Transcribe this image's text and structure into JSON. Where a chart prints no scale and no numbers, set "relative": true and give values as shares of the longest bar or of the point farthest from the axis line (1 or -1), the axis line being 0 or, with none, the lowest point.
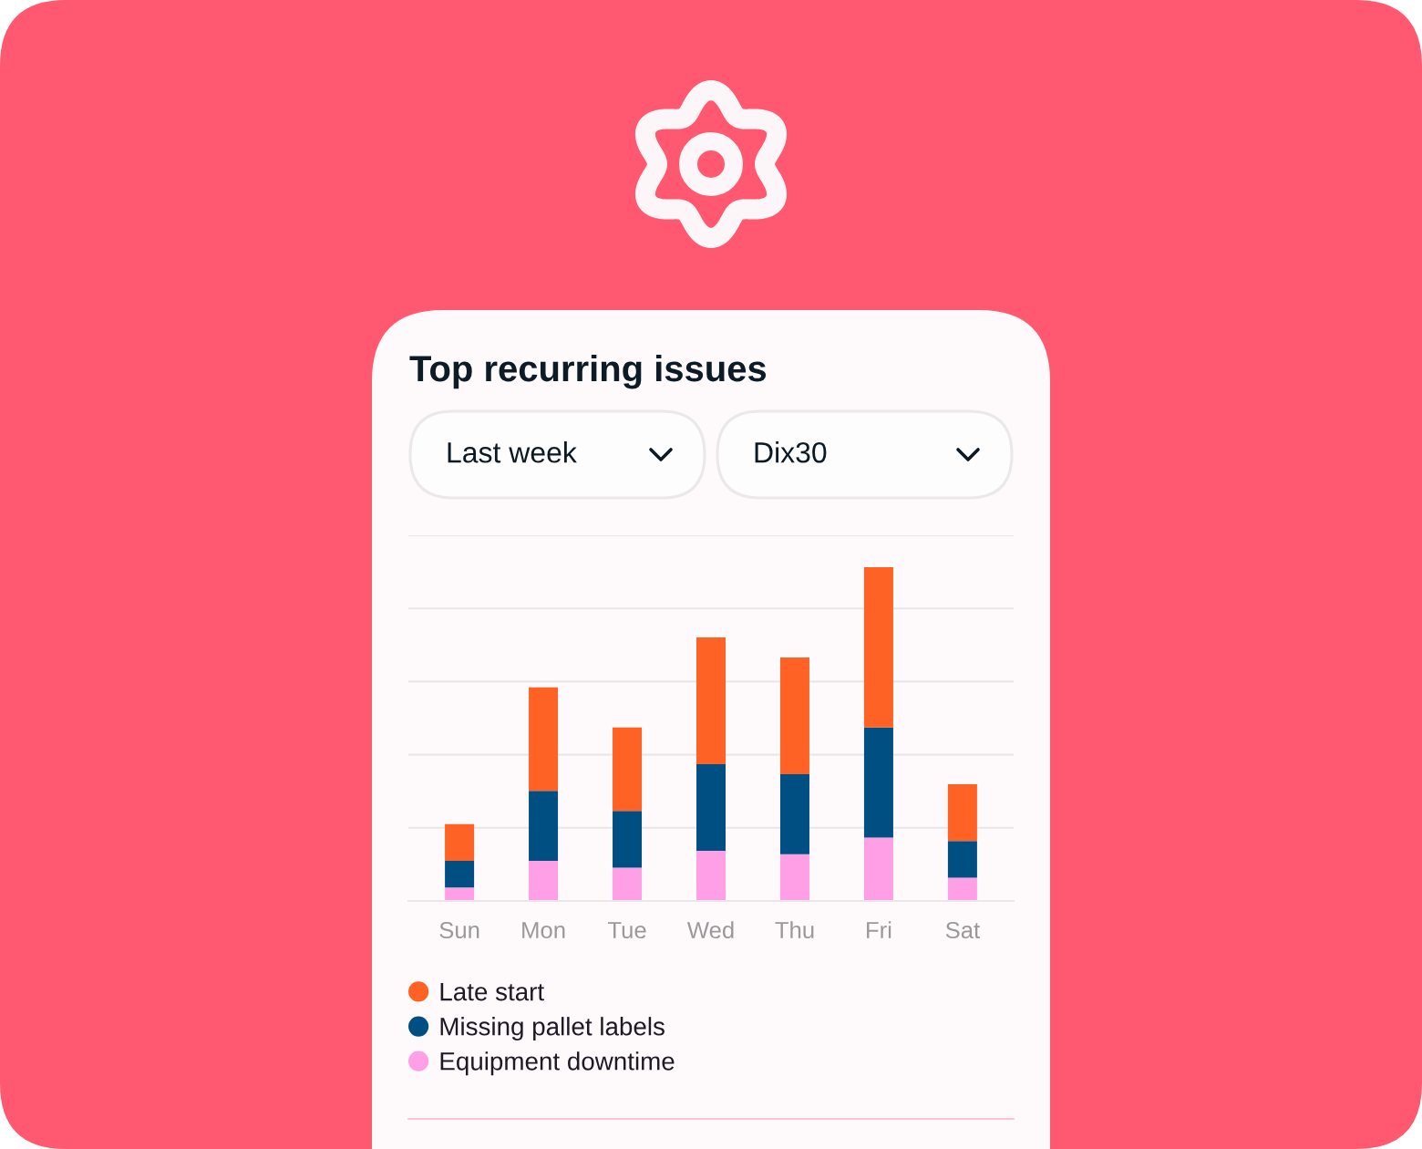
{
  "chart_data": {
    "type": "bar",
    "title": "Top recurring issues",
    "annotations": [
      "Last week",
      "Dix30"
    ],
    "categories": [
      "Sun",
      "Mon",
      "Tue",
      "Wed",
      "Thu",
      "Fri",
      "Sat"
    ],
    "stacked": true,
    "relative": true,
    "series": [
      {
        "name": "Equipment downtime",
        "color": "#ffa0e6",
        "values": [
          0.04,
          0.12,
          0.1,
          0.15,
          0.14,
          0.19,
          0.07
        ]
      },
      {
        "name": "Missing pallet labels",
        "color": "#004f83",
        "values": [
          0.08,
          0.21,
          0.17,
          0.26,
          0.24,
          0.33,
          0.11
        ]
      },
      {
        "name": "Late start",
        "color": "#ff6224",
        "values": [
          0.11,
          0.31,
          0.25,
          0.38,
          0.35,
          0.48,
          0.17
        ]
      }
    ],
    "grid": "y",
    "legend": "bottom",
    "tick_labels": "x"
  }
}
